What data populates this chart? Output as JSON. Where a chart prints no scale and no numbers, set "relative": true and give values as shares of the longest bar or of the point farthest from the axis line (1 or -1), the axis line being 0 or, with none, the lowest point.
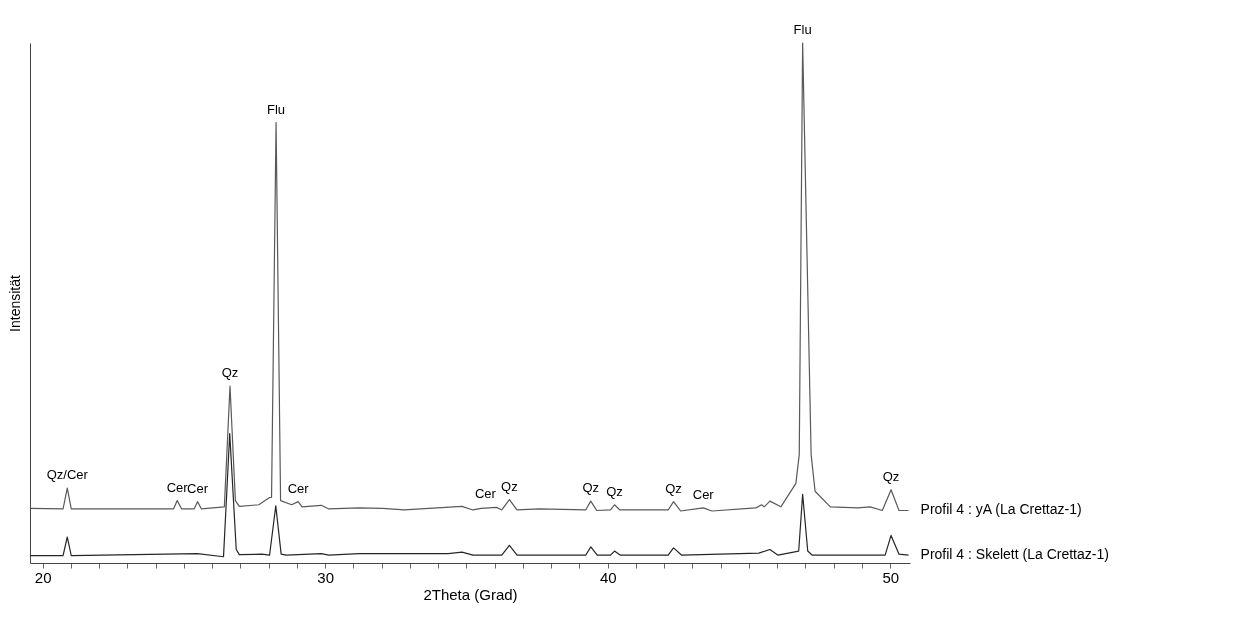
{
  "chart_data": {
    "type": "line",
    "relative": true,
    "xlabel": "2Theta (Grad)",
    "ylabel": "Intensität",
    "xlim": [
      19.55,
      50.7
    ],
    "xticks": [
      20,
      {
        "value": 21,
        "label": null
      },
      {
        "value": 22,
        "label": null
      },
      {
        "value": 23,
        "label": null
      },
      {
        "value": 24,
        "label": null
      },
      {
        "value": 25,
        "label": null
      },
      {
        "value": 26,
        "label": null
      },
      {
        "value": 27,
        "label": null
      },
      {
        "value": 28,
        "label": null
      },
      {
        "value": 29,
        "label": null
      },
      30,
      {
        "value": 31,
        "label": null
      },
      {
        "value": 32,
        "label": null
      },
      {
        "value": 33,
        "label": null
      },
      {
        "value": 34,
        "label": null
      },
      {
        "value": 35,
        "label": null
      },
      {
        "value": 36,
        "label": null
      },
      {
        "value": 37,
        "label": null
      },
      {
        "value": 38,
        "label": null
      },
      {
        "value": 39,
        "label": null
      },
      40,
      {
        "value": 41,
        "label": null
      },
      {
        "value": 42,
        "label": null
      },
      {
        "value": 43,
        "label": null
      },
      {
        "value": 44,
        "label": null
      },
      {
        "value": 45,
        "label": null
      },
      {
        "value": 46,
        "label": null
      },
      {
        "value": 47,
        "label": null
      },
      {
        "value": 48,
        "label": null
      },
      {
        "value": 49,
        "label": null
      },
      50
    ],
    "grid": false,
    "series": [
      {
        "name": "Profil 4 : yA (La Crettaz-1)",
        "color": "#595959",
        "x": [
          19.56,
          20.72,
          20.87,
          21.01,
          24.63,
          24.76,
          24.92,
          25.36,
          25.48,
          25.62,
          26.43,
          26.63,
          26.82,
          26.96,
          27.65,
          28.03,
          28.1,
          28.26,
          28.42,
          28.81,
          29.04,
          29.18,
          29.86,
          30.13,
          31.2,
          32.02,
          32.8,
          34.84,
          35.23,
          35.52,
          36.06,
          36.25,
          36.52,
          36.79,
          37.57,
          39.22,
          39.4,
          39.61,
          40.1,
          40.24,
          40.43,
          42.14,
          42.33,
          42.58,
          43.38,
          43.69,
          45.25,
          45.45,
          45.54,
          45.74,
          46.13,
          46.66,
          46.78,
          46.9,
          47.2,
          47.34,
          47.88,
          48.85,
          49.29,
          49.72,
          50.03,
          50.31,
          50.65
        ],
        "values": [
          0.105,
          0.104,
          0.144,
          0.104,
          0.104,
          0.12,
          0.104,
          0.104,
          0.118,
          0.104,
          0.108,
          0.34,
          0.12,
          0.109,
          0.112,
          0.126,
          0.126,
          0.847,
          0.12,
          0.112,
          0.118,
          0.108,
          0.111,
          0.104,
          0.106,
          0.105,
          0.102,
          0.109,
          0.102,
          0.105,
          0.107,
          0.102,
          0.122,
          0.102,
          0.104,
          0.102,
          0.119,
          0.101,
          0.102,
          0.112,
          0.102,
          0.102,
          0.118,
          0.1,
          0.106,
          0.1,
          0.106,
          0.112,
          0.108,
          0.119,
          0.108,
          0.153,
          0.209,
          1.0,
          0.209,
          0.138,
          0.108,
          0.106,
          0.108,
          0.101,
          0.141,
          0.101,
          0.101
        ]
      },
      {
        "name": "Profil 4 : Skelett (La Crettaz-1)",
        "color": "#262626",
        "x": [
          19.56,
          20.72,
          20.87,
          21.01,
          25.48,
          26.4,
          26.62,
          26.85,
          26.96,
          27.76,
          28.03,
          28.25,
          28.44,
          28.62,
          29.86,
          30.13,
          31.2,
          32.02,
          34.35,
          34.84,
          35.23,
          36.25,
          36.52,
          36.79,
          39.22,
          39.4,
          39.63,
          40.1,
          40.24,
          40.45,
          42.14,
          42.33,
          42.62,
          45.35,
          45.74,
          46.03,
          46.76,
          46.9,
          47.08,
          47.24,
          49.82,
          50.03,
          50.31,
          50.65
        ],
        "values": [
          0.014,
          0.014,
          0.05,
          0.014,
          0.018,
          0.012,
          0.249,
          0.026,
          0.016,
          0.017,
          0.015,
          0.11,
          0.017,
          0.015,
          0.018,
          0.015,
          0.018,
          0.018,
          0.018,
          0.021,
          0.015,
          0.015,
          0.034,
          0.015,
          0.015,
          0.031,
          0.015,
          0.015,
          0.023,
          0.015,
          0.015,
          0.029,
          0.015,
          0.019,
          0.026,
          0.015,
          0.023,
          0.132,
          0.023,
          0.015,
          0.015,
          0.053,
          0.017,
          0.015
        ]
      }
    ],
    "annotations": [
      {
        "text": "Qz/Cer",
        "x": 20.87,
        "y": 0.144
      },
      {
        "text": "Cer",
        "x": 24.76,
        "y": 0.12
      },
      {
        "text": "Cer",
        "x": 25.48,
        "y": 0.118
      },
      {
        "text": "Qz",
        "x": 26.63,
        "y": 0.34
      },
      {
        "text": "Flu",
        "x": 28.26,
        "y": 0.847
      },
      {
        "text": "Cer",
        "x": 29.04,
        "y": 0.118
      },
      {
        "text": "Cer",
        "x": 35.67,
        "y": 0.107
      },
      {
        "text": "Qz",
        "x": 36.52,
        "y": 0.122
      },
      {
        "text": "Qz",
        "x": 39.4,
        "y": 0.119
      },
      {
        "text": "Qz",
        "x": 40.24,
        "y": 0.112
      },
      {
        "text": "Qz",
        "x": 42.33,
        "y": 0.118
      },
      {
        "text": "Cer",
        "x": 43.38,
        "y": 0.106
      },
      {
        "text": "Flu",
        "x": 46.9,
        "y": 1.0
      },
      {
        "text": "Qz",
        "x": 50.03,
        "y": 0.141
      }
    ]
  }
}
